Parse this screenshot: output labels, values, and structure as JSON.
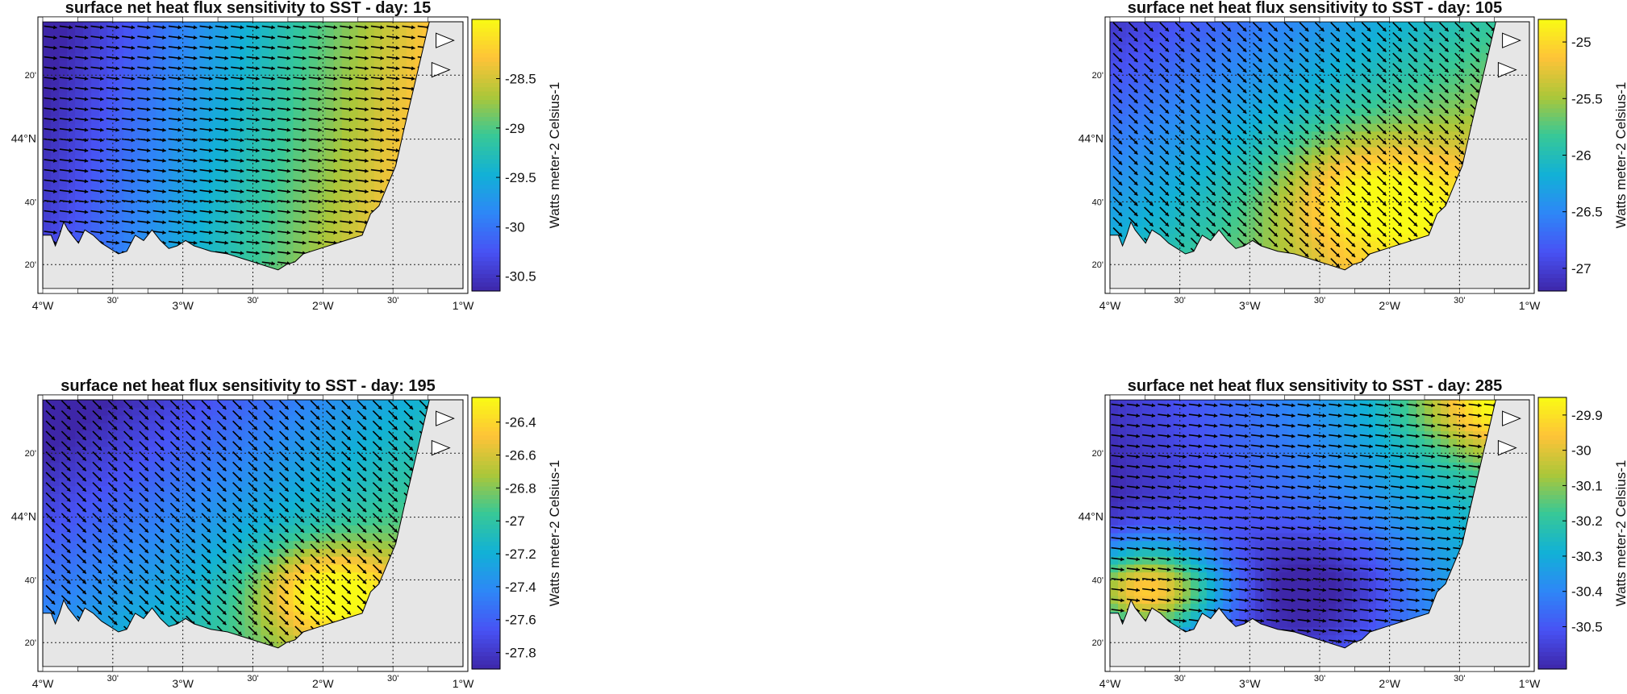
{
  "chart_data": [
    {
      "type": "heatmap",
      "title": "surface net heat flux sensitivity to SST - day: 15",
      "colorbar_label": "Watts meter-2 Celsius-1",
      "colorbar_range": [
        -30.65,
        -27.9
      ],
      "colorbar_ticks": [
        "-30.5",
        "-30",
        "-29.5",
        "-29",
        "-28.5"
      ],
      "colorbar_tick_values": [
        -30.5,
        -30,
        -29.5,
        -29,
        -28.5
      ],
      "pattern": "horizontal",
      "x_ticks": [
        "4°W",
        "30'",
        "3°W",
        "30'",
        "2°W",
        "30'",
        "1°W"
      ],
      "y_ticks": [
        "44°N",
        "40'",
        "20'",
        "20'"
      ],
      "vectors": "east"
    },
    {
      "type": "heatmap",
      "title": "surface net heat flux sensitivity to SST - day: 105",
      "colorbar_label": "Watts meter-2 Celsius-1",
      "colorbar_range": [
        -27.2,
        -24.8
      ],
      "colorbar_ticks": [
        "-27",
        "-26.5",
        "-26",
        "-25.5",
        "-25"
      ],
      "colorbar_tick_values": [
        -27,
        -26.5,
        -26,
        -25.5,
        -25
      ],
      "pattern": "diagonal",
      "x_ticks": [
        "4°W",
        "30'",
        "3°W",
        "30'",
        "2°W",
        "30'",
        "1°W"
      ],
      "y_ticks": [
        "44°N",
        "40'",
        "20'",
        "20'"
      ],
      "vectors": "southeast"
    },
    {
      "type": "heatmap",
      "title": "surface net heat flux sensitivity to SST - day: 195",
      "colorbar_label": "Watts meter-2 Celsius-1",
      "colorbar_range": [
        -27.9,
        -26.25
      ],
      "colorbar_ticks": [
        "-27.8",
        "-27.6",
        "-27.4",
        "-27.2",
        "-27",
        "-26.8",
        "-26.6",
        "-26.4"
      ],
      "colorbar_tick_values": [
        -27.8,
        -27.6,
        -27.4,
        -27.2,
        -27,
        -26.8,
        -26.6,
        -26.4
      ],
      "pattern": "diagonal-south",
      "x_ticks": [
        "4°W",
        "30'",
        "3°W",
        "30'",
        "2°W",
        "30'",
        "1°W"
      ],
      "y_ticks": [
        "44°N",
        "40'",
        "20'",
        "20'"
      ],
      "vectors": "southeast"
    },
    {
      "type": "heatmap",
      "title": "surface net heat flux sensitivity to SST - day: 285",
      "colorbar_label": "Watts meter-2 Celsius-1",
      "colorbar_range": [
        -30.62,
        -29.85
      ],
      "colorbar_ticks": [
        "-30.5",
        "-30.4",
        "-30.3",
        "-30.2",
        "-30.1",
        "-30",
        "-29.9"
      ],
      "colorbar_tick_values": [
        -30.5,
        -30.4,
        -30.3,
        -30.2,
        -30.1,
        -30,
        -29.9
      ],
      "pattern": "mixed",
      "x_ticks": [
        "4°W",
        "30'",
        "3°W",
        "30'",
        "2°W",
        "30'",
        "1°W"
      ],
      "y_ticks": [
        "44°N",
        "40'",
        "20'",
        "20'"
      ],
      "vectors": "east"
    }
  ],
  "colors": {
    "land": "#e6e6e6",
    "grid": "#222222",
    "arrow": "#000000"
  }
}
